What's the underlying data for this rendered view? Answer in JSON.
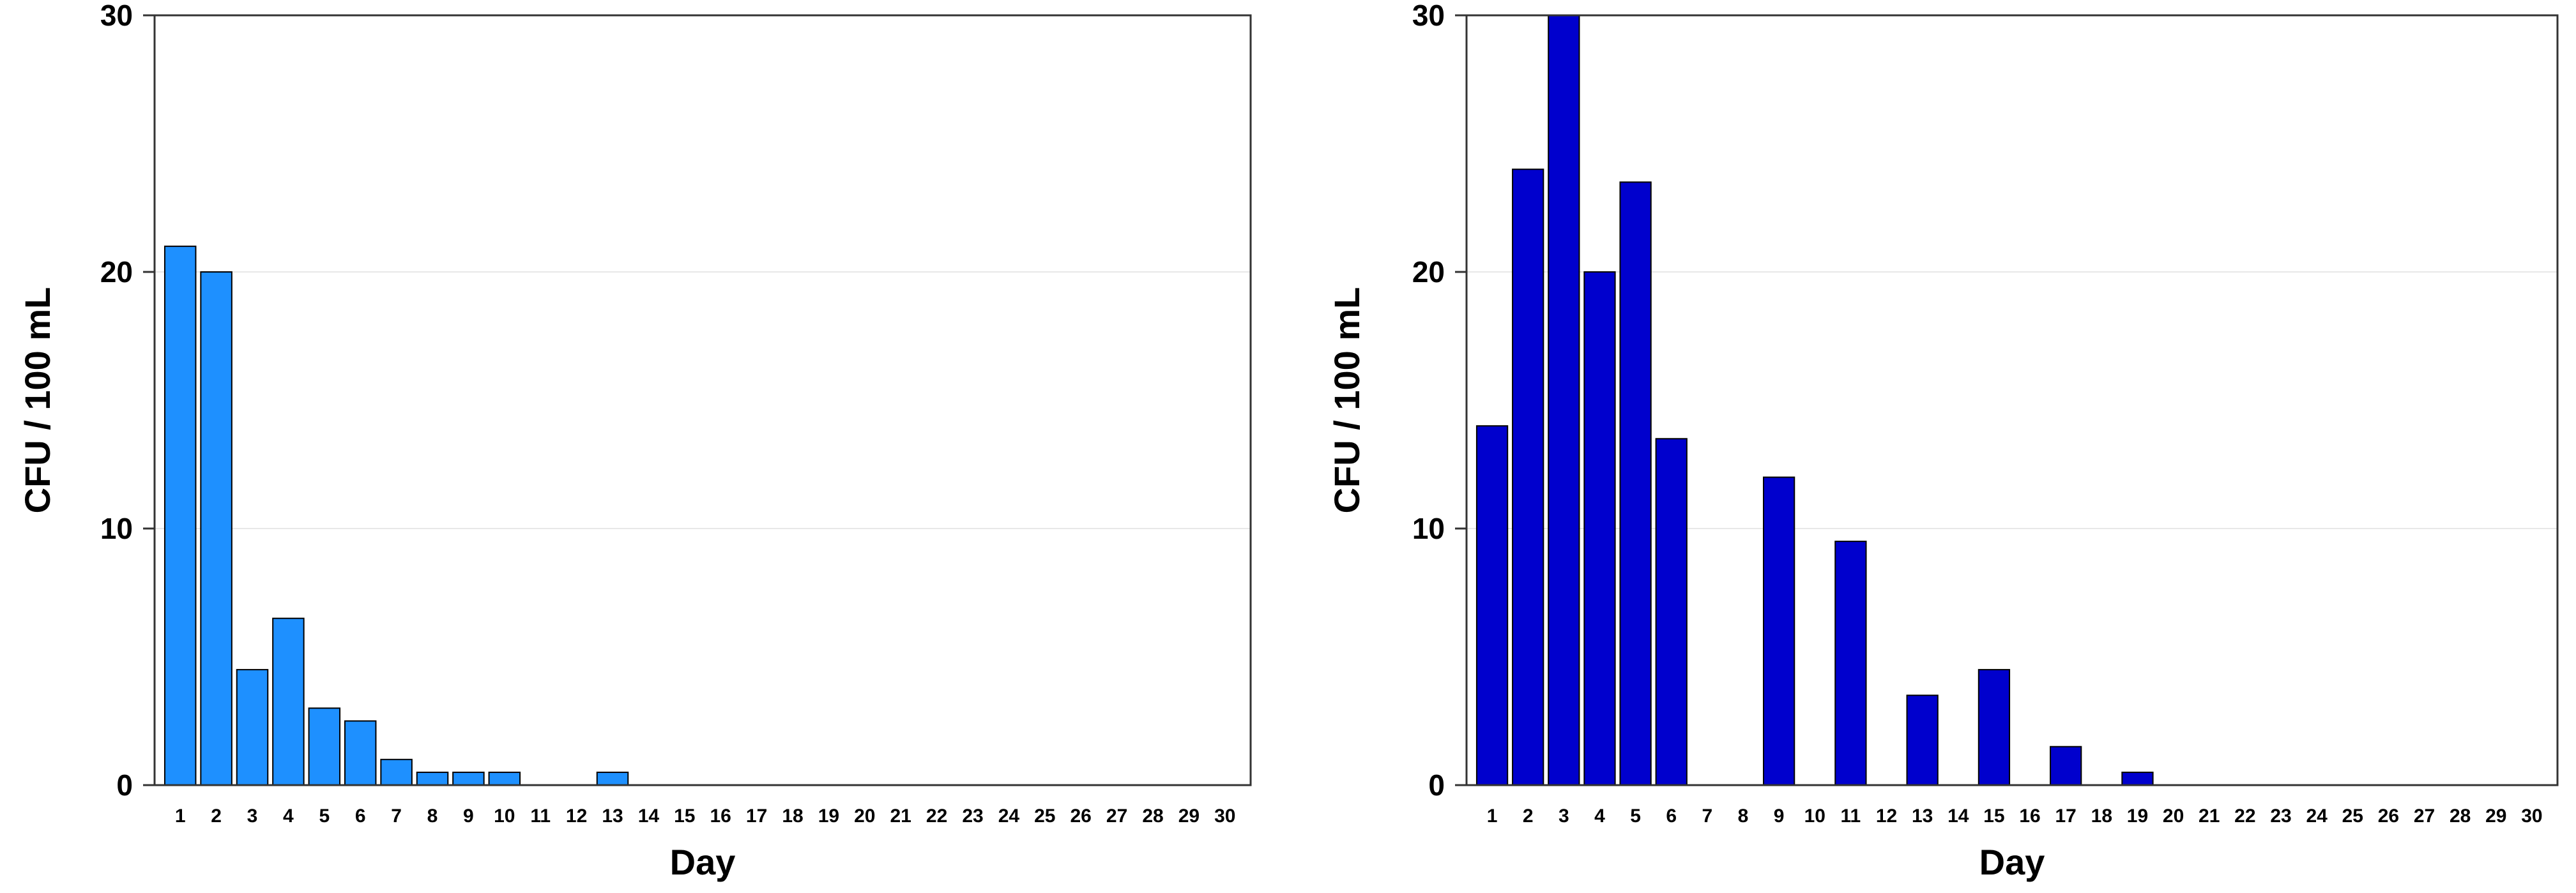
{
  "chart_data": [
    {
      "type": "bar",
      "title": "",
      "xlabel": "Day",
      "ylabel": "CFU / 100 mL",
      "ylim": [
        0,
        30
      ],
      "yticks": [
        0,
        10,
        20,
        30
      ],
      "grid": "horizontal",
      "bar_color": "#1E90FF",
      "categories": [
        "1",
        "2",
        "3",
        "4",
        "5",
        "6",
        "7",
        "8",
        "9",
        "10",
        "11",
        "12",
        "13",
        "14",
        "15",
        "16",
        "17",
        "18",
        "19",
        "20",
        "21",
        "22",
        "23",
        "24",
        "25",
        "26",
        "27",
        "28",
        "29",
        "30"
      ],
      "values": [
        21,
        20,
        4.5,
        6.5,
        3,
        2.5,
        1,
        0.5,
        0.5,
        0.5,
        0,
        0,
        0.5,
        0,
        0,
        0,
        0,
        0,
        0,
        0,
        0,
        0,
        0,
        0,
        0,
        0,
        0,
        0,
        0,
        0
      ]
    },
    {
      "type": "bar",
      "title": "",
      "xlabel": "Day",
      "ylabel": "CFU / 100 mL",
      "ylim": [
        0,
        30
      ],
      "yticks": [
        0,
        10,
        20,
        30
      ],
      "grid": "horizontal",
      "bar_color": "#0000CD",
      "categories": [
        "1",
        "2",
        "3",
        "4",
        "5",
        "6",
        "7",
        "8",
        "9",
        "10",
        "11",
        "12",
        "13",
        "14",
        "15",
        "16",
        "17",
        "18",
        "19",
        "20",
        "21",
        "22",
        "23",
        "24",
        "25",
        "26",
        "27",
        "28",
        "29",
        "30"
      ],
      "values": [
        14,
        24,
        30.5,
        20,
        23.5,
        13.5,
        0,
        0,
        12,
        0,
        9.5,
        0,
        3.5,
        0,
        4.5,
        0,
        1.5,
        0,
        0.5,
        0,
        0,
        0,
        0,
        0,
        0,
        0,
        0,
        0,
        0,
        0
      ]
    }
  ]
}
